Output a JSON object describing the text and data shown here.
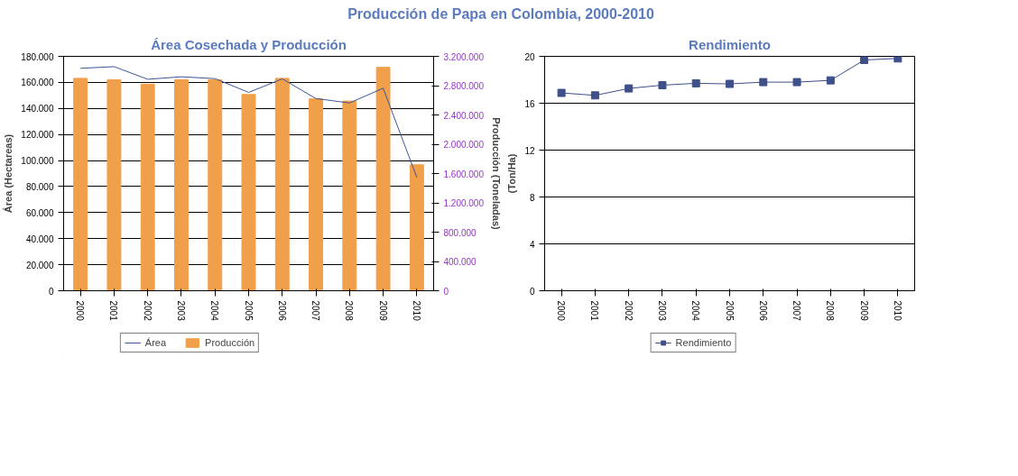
{
  "chart_data": [
    {
      "type": "bar",
      "title": "Área Cosechada y Producción",
      "ylabel": "Área (Hectareas)",
      "y2label": "Producción (Toneladas)",
      "annotations": [
        "Producción de Papa en Colombia, 2000-2010"
      ],
      "categories": [
        "2000",
        "2001",
        "2002",
        "2003",
        "2004",
        "2005",
        "2006",
        "2007",
        "2008",
        "2009",
        "2010"
      ],
      "series": [
        {
          "name": "Área",
          "type": "line",
          "color": "#3f5496",
          "values": [
            170800,
            172100,
            162400,
            164300,
            162900,
            152300,
            162700,
            147600,
            144200,
            155500,
            87100
          ]
        },
        {
          "name": "Producción",
          "type": "bar",
          "axis": "y2",
          "color": "#f0a04b",
          "values": [
            2900000,
            2880000,
            2820000,
            2880000,
            2880000,
            2680000,
            2900000,
            2620000,
            2590000,
            3050000,
            1720000
          ]
        }
      ],
      "ylim": [
        0,
        180000
      ],
      "yticks": [
        {
          "value": 0,
          "label": "0"
        },
        {
          "value": 20000,
          "label": "20.000"
        },
        {
          "value": 40000,
          "label": "40.000"
        },
        {
          "value": 60000,
          "label": "60.000"
        },
        {
          "value": 80000,
          "label": "80.000"
        },
        {
          "value": 100000,
          "label": "100.000"
        },
        {
          "value": 120000,
          "label": "120.000"
        },
        {
          "value": 140000,
          "label": "140.000"
        },
        {
          "value": 160000,
          "label": "160.000"
        },
        {
          "value": 180000,
          "label": "180.000"
        }
      ],
      "y2lim": [
        0,
        3200000
      ],
      "y2ticks": [
        {
          "value": 0,
          "label": "0"
        },
        {
          "value": 400000,
          "label": "400.000"
        },
        {
          "value": 800000,
          "label": "800.000"
        },
        {
          "value": 1200000,
          "label": "1.200.000"
        },
        {
          "value": 1600000,
          "label": "1.600.000"
        },
        {
          "value": 2000000,
          "label": "2.000.000"
        },
        {
          "value": 2400000,
          "label": "2.400.000"
        },
        {
          "value": 2800000,
          "label": "2.800.000"
        },
        {
          "value": 3200000,
          "label": "3.200.000"
        }
      ],
      "grid": "y",
      "legend": "bottom"
    },
    {
      "type": "line",
      "title": "Rendimiento",
      "ylabel": "(Ton/Ha)",
      "categories": [
        "2000",
        "2001",
        "2002",
        "2003",
        "2004",
        "2005",
        "2006",
        "2007",
        "2008",
        "2009",
        "2010"
      ],
      "series": [
        {
          "name": "Rendimiento",
          "color": "#3e4f8a",
          "values": [
            16.88,
            16.67,
            17.26,
            17.54,
            17.7,
            17.65,
            17.8,
            17.8,
            17.95,
            19.69,
            19.82
          ]
        }
      ],
      "ylim": [
        0,
        20
      ],
      "yticks": [
        0,
        4,
        8,
        12,
        16,
        20
      ],
      "marker": "square",
      "grid": "y",
      "legend": "bottom"
    }
  ]
}
